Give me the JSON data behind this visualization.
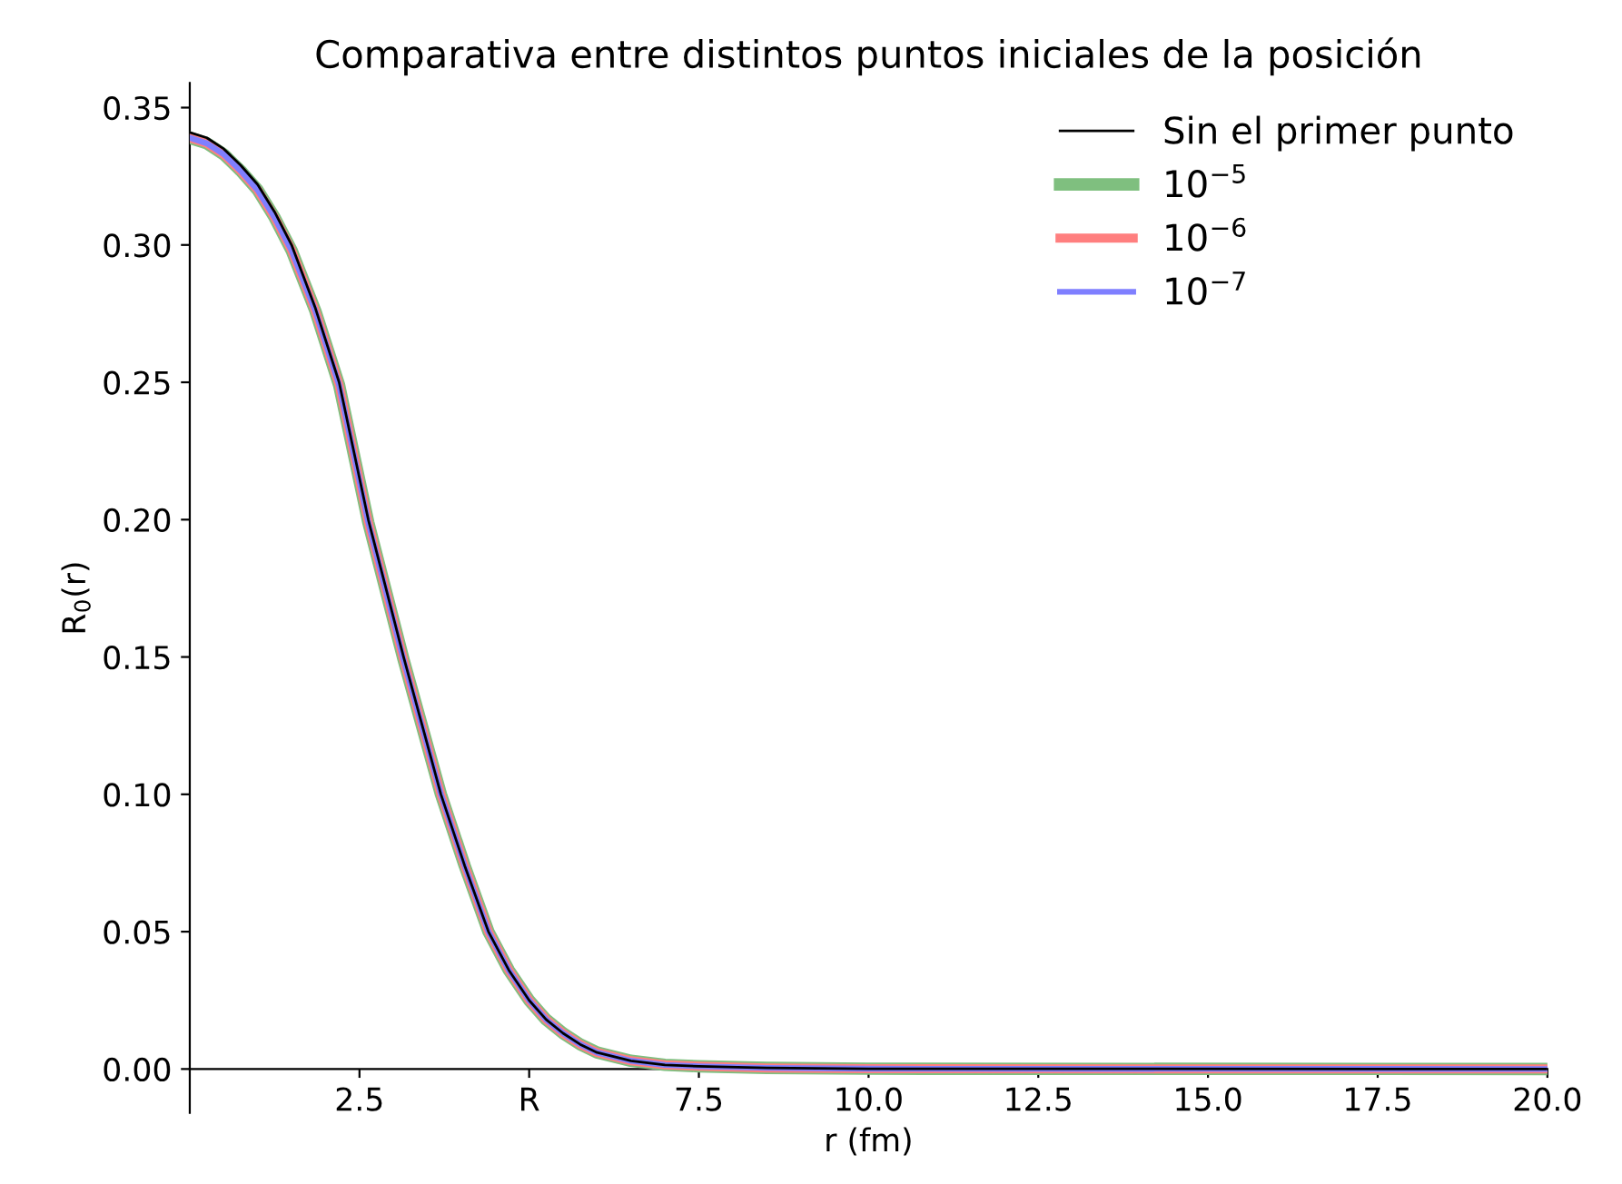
{
  "chart_data": {
    "type": "line",
    "title": "Comparativa entre distintos puntos iniciales de la posición",
    "xlabel": "r (fm)",
    "ylabel": "R$_{0}$(r)",
    "x": [
      0,
      0.25,
      0.5,
      0.75,
      1,
      1.25,
      1.5,
      1.85,
      2.2,
      2.63,
      3.15,
      3.7,
      4.05,
      4.4,
      4.7,
      5,
      5.25,
      5.5,
      5.75,
      6,
      6.5,
      7,
      7.5,
      8.5,
      10,
      20
    ],
    "series": [
      {
        "name": "Sin el primer punto",
        "color": "#000000",
        "values": [
          0.341,
          0.339,
          0.335,
          0.329,
          0.322,
          0.312,
          0.3,
          0.277,
          0.25,
          0.2,
          0.15,
          0.1,
          0.074,
          0.05,
          0.036,
          0.025,
          0.018,
          0.013,
          0.009,
          0.006,
          0.003,
          0.0015,
          0.001,
          0.0004,
          0.0001,
          0
        ]
      },
      {
        "name": "10$^{−5}$",
        "color": "#7fbf7f",
        "values": [
          0.339,
          0.337,
          0.333,
          0.327,
          0.32,
          0.31,
          0.298,
          0.276,
          0.249,
          0.199,
          0.149,
          0.1,
          0.074,
          0.05,
          0.036,
          0.025,
          0.018,
          0.013,
          0.009,
          0.006,
          0.003,
          0.0015,
          0.001,
          0.0004,
          0.0001,
          0
        ]
      },
      {
        "name": "10$^{−6}$",
        "color": "#ff7f7f",
        "values": [
          0.339,
          0.337,
          0.333,
          0.327,
          0.32,
          0.31,
          0.298,
          0.276,
          0.249,
          0.199,
          0.149,
          0.1,
          0.074,
          0.05,
          0.036,
          0.025,
          0.018,
          0.013,
          0.009,
          0.006,
          0.003,
          0.0015,
          0.001,
          0.0004,
          0.0001,
          0
        ]
      },
      {
        "name": "10$^{−7}$",
        "color": "#7f7fff",
        "values": [
          0.339,
          0.337,
          0.333,
          0.327,
          0.32,
          0.31,
          0.298,
          0.276,
          0.249,
          0.199,
          0.149,
          0.1,
          0.074,
          0.05,
          0.036,
          0.025,
          0.018,
          0.013,
          0.009,
          0.006,
          0.003,
          0.0015,
          0.001,
          0.0004,
          0.0001,
          0
        ]
      }
    ],
    "xlim": [
      0,
      20
    ],
    "ylim": [
      -0.016,
      0.359
    ],
    "xticks": [
      2.5,
      {
        "value": 5,
        "label": "R"
      },
      7.5,
      {
        "value": 10,
        "label": "10.0"
      },
      12.5,
      {
        "value": 15,
        "label": "15.0"
      },
      17.5,
      {
        "value": 20,
        "label": "20.0"
      }
    ],
    "yticks": [
      {
        "value": 0,
        "label": "0.00"
      },
      0.05,
      {
        "value": 0.1,
        "label": "0.10"
      },
      0.15,
      {
        "value": 0.2,
        "label": "0.20"
      },
      0.25,
      {
        "value": 0.3,
        "label": "0.30"
      },
      0.35
    ],
    "grid": false,
    "legend": "top right",
    "marker": "none",
    "line_style": "solid"
  }
}
